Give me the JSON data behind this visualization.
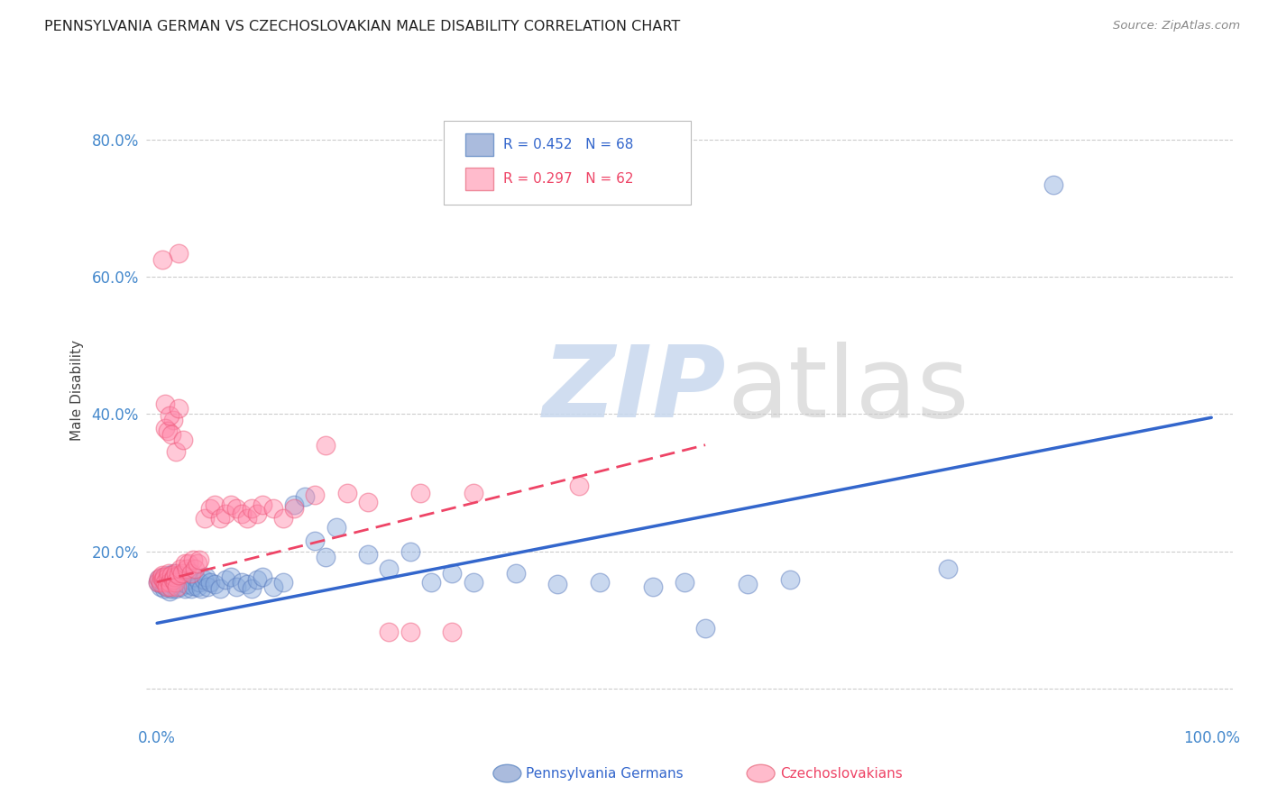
{
  "title": "PENNSYLVANIA GERMAN VS CZECHOSLOVAKIAN MALE DISABILITY CORRELATION CHART",
  "source": "Source: ZipAtlas.com",
  "ylabel_label": "Male Disability",
  "blue_color": "#88aadd",
  "pink_color": "#ff88aa",
  "blue_edge_color": "#5577bb",
  "pink_edge_color": "#ee5577",
  "blue_line_color": "#3366cc",
  "pink_line_color": "#ee4466",
  "watermark_zip": "ZIP",
  "watermark_atlas": "atlas",
  "xlim": [
    -0.01,
    1.02
  ],
  "ylim": [
    -0.05,
    0.92
  ],
  "x_ticks": [
    0.0,
    0.25,
    0.5,
    0.75,
    1.0
  ],
  "x_tick_labels": [
    "0.0%",
    "",
    "",
    "",
    "100.0%"
  ],
  "y_ticks": [
    0.0,
    0.2,
    0.4,
    0.6,
    0.8
  ],
  "y_tick_labels": [
    "",
    "20.0%",
    "40.0%",
    "60.0%",
    "80.0%"
  ],
  "blue_line_x": [
    0.0,
    1.0
  ],
  "blue_line_y": [
    0.095,
    0.395
  ],
  "pink_line_x": [
    0.0,
    0.52
  ],
  "pink_line_y": [
    0.155,
    0.355
  ],
  "blue_points": [
    [
      0.001,
      0.155
    ],
    [
      0.002,
      0.16
    ],
    [
      0.003,
      0.148
    ],
    [
      0.004,
      0.152
    ],
    [
      0.005,
      0.158
    ],
    [
      0.006,
      0.162
    ],
    [
      0.007,
      0.145
    ],
    [
      0.008,
      0.15
    ],
    [
      0.009,
      0.155
    ],
    [
      0.01,
      0.148
    ],
    [
      0.011,
      0.165
    ],
    [
      0.012,
      0.142
    ],
    [
      0.013,
      0.158
    ],
    [
      0.014,
      0.145
    ],
    [
      0.015,
      0.152
    ],
    [
      0.016,
      0.168
    ],
    [
      0.017,
      0.16
    ],
    [
      0.018,
      0.145
    ],
    [
      0.019,
      0.155
    ],
    [
      0.02,
      0.162
    ],
    [
      0.022,
      0.148
    ],
    [
      0.024,
      0.155
    ],
    [
      0.026,
      0.145
    ],
    [
      0.028,
      0.152
    ],
    [
      0.03,
      0.158
    ],
    [
      0.032,
      0.145
    ],
    [
      0.034,
      0.15
    ],
    [
      0.036,
      0.162
    ],
    [
      0.038,
      0.148
    ],
    [
      0.04,
      0.155
    ],
    [
      0.042,
      0.145
    ],
    [
      0.044,
      0.158
    ],
    [
      0.046,
      0.162
    ],
    [
      0.048,
      0.148
    ],
    [
      0.05,
      0.155
    ],
    [
      0.055,
      0.152
    ],
    [
      0.06,
      0.145
    ],
    [
      0.065,
      0.158
    ],
    [
      0.07,
      0.162
    ],
    [
      0.075,
      0.148
    ],
    [
      0.08,
      0.155
    ],
    [
      0.085,
      0.152
    ],
    [
      0.09,
      0.145
    ],
    [
      0.095,
      0.158
    ],
    [
      0.1,
      0.162
    ],
    [
      0.11,
      0.148
    ],
    [
      0.12,
      0.155
    ],
    [
      0.13,
      0.268
    ],
    [
      0.14,
      0.28
    ],
    [
      0.15,
      0.215
    ],
    [
      0.16,
      0.192
    ],
    [
      0.17,
      0.235
    ],
    [
      0.2,
      0.195
    ],
    [
      0.22,
      0.175
    ],
    [
      0.24,
      0.2
    ],
    [
      0.26,
      0.155
    ],
    [
      0.28,
      0.168
    ],
    [
      0.3,
      0.155
    ],
    [
      0.34,
      0.168
    ],
    [
      0.38,
      0.152
    ],
    [
      0.42,
      0.155
    ],
    [
      0.47,
      0.148
    ],
    [
      0.5,
      0.155
    ],
    [
      0.52,
      0.088
    ],
    [
      0.56,
      0.152
    ],
    [
      0.6,
      0.158
    ],
    [
      0.75,
      0.175
    ],
    [
      0.85,
      0.735
    ]
  ],
  "pink_points": [
    [
      0.001,
      0.155
    ],
    [
      0.002,
      0.16
    ],
    [
      0.003,
      0.155
    ],
    [
      0.004,
      0.162
    ],
    [
      0.005,
      0.165
    ],
    [
      0.006,
      0.158
    ],
    [
      0.007,
      0.162
    ],
    [
      0.008,
      0.155
    ],
    [
      0.009,
      0.148
    ],
    [
      0.01,
      0.162
    ],
    [
      0.011,
      0.168
    ],
    [
      0.012,
      0.155
    ],
    [
      0.013,
      0.148
    ],
    [
      0.014,
      0.165
    ],
    [
      0.015,
      0.158
    ],
    [
      0.016,
      0.162
    ],
    [
      0.017,
      0.155
    ],
    [
      0.018,
      0.168
    ],
    [
      0.019,
      0.148
    ],
    [
      0.02,
      0.165
    ],
    [
      0.022,
      0.175
    ],
    [
      0.024,
      0.168
    ],
    [
      0.026,
      0.182
    ],
    [
      0.028,
      0.175
    ],
    [
      0.03,
      0.182
    ],
    [
      0.032,
      0.168
    ],
    [
      0.034,
      0.188
    ],
    [
      0.036,
      0.175
    ],
    [
      0.038,
      0.182
    ],
    [
      0.04,
      0.188
    ],
    [
      0.045,
      0.248
    ],
    [
      0.05,
      0.262
    ],
    [
      0.055,
      0.268
    ],
    [
      0.06,
      0.248
    ],
    [
      0.065,
      0.255
    ],
    [
      0.07,
      0.268
    ],
    [
      0.075,
      0.262
    ],
    [
      0.08,
      0.255
    ],
    [
      0.085,
      0.248
    ],
    [
      0.09,
      0.262
    ],
    [
      0.095,
      0.255
    ],
    [
      0.1,
      0.268
    ],
    [
      0.11,
      0.262
    ],
    [
      0.12,
      0.248
    ],
    [
      0.13,
      0.262
    ],
    [
      0.15,
      0.282
    ],
    [
      0.16,
      0.355
    ],
    [
      0.18,
      0.285
    ],
    [
      0.2,
      0.272
    ],
    [
      0.22,
      0.082
    ],
    [
      0.24,
      0.082
    ],
    [
      0.25,
      0.285
    ],
    [
      0.28,
      0.082
    ],
    [
      0.02,
      0.635
    ],
    [
      0.005,
      0.625
    ],
    [
      0.3,
      0.285
    ],
    [
      0.4,
      0.295
    ],
    [
      0.015,
      0.392
    ],
    [
      0.008,
      0.38
    ],
    [
      0.008,
      0.415
    ],
    [
      0.01,
      0.375
    ],
    [
      0.012,
      0.398
    ],
    [
      0.014,
      0.37
    ],
    [
      0.018,
      0.345
    ],
    [
      0.02,
      0.408
    ],
    [
      0.025,
      0.362
    ]
  ],
  "grid_color": "#cccccc",
  "tick_color": "#4488cc",
  "background_color": "#ffffff"
}
